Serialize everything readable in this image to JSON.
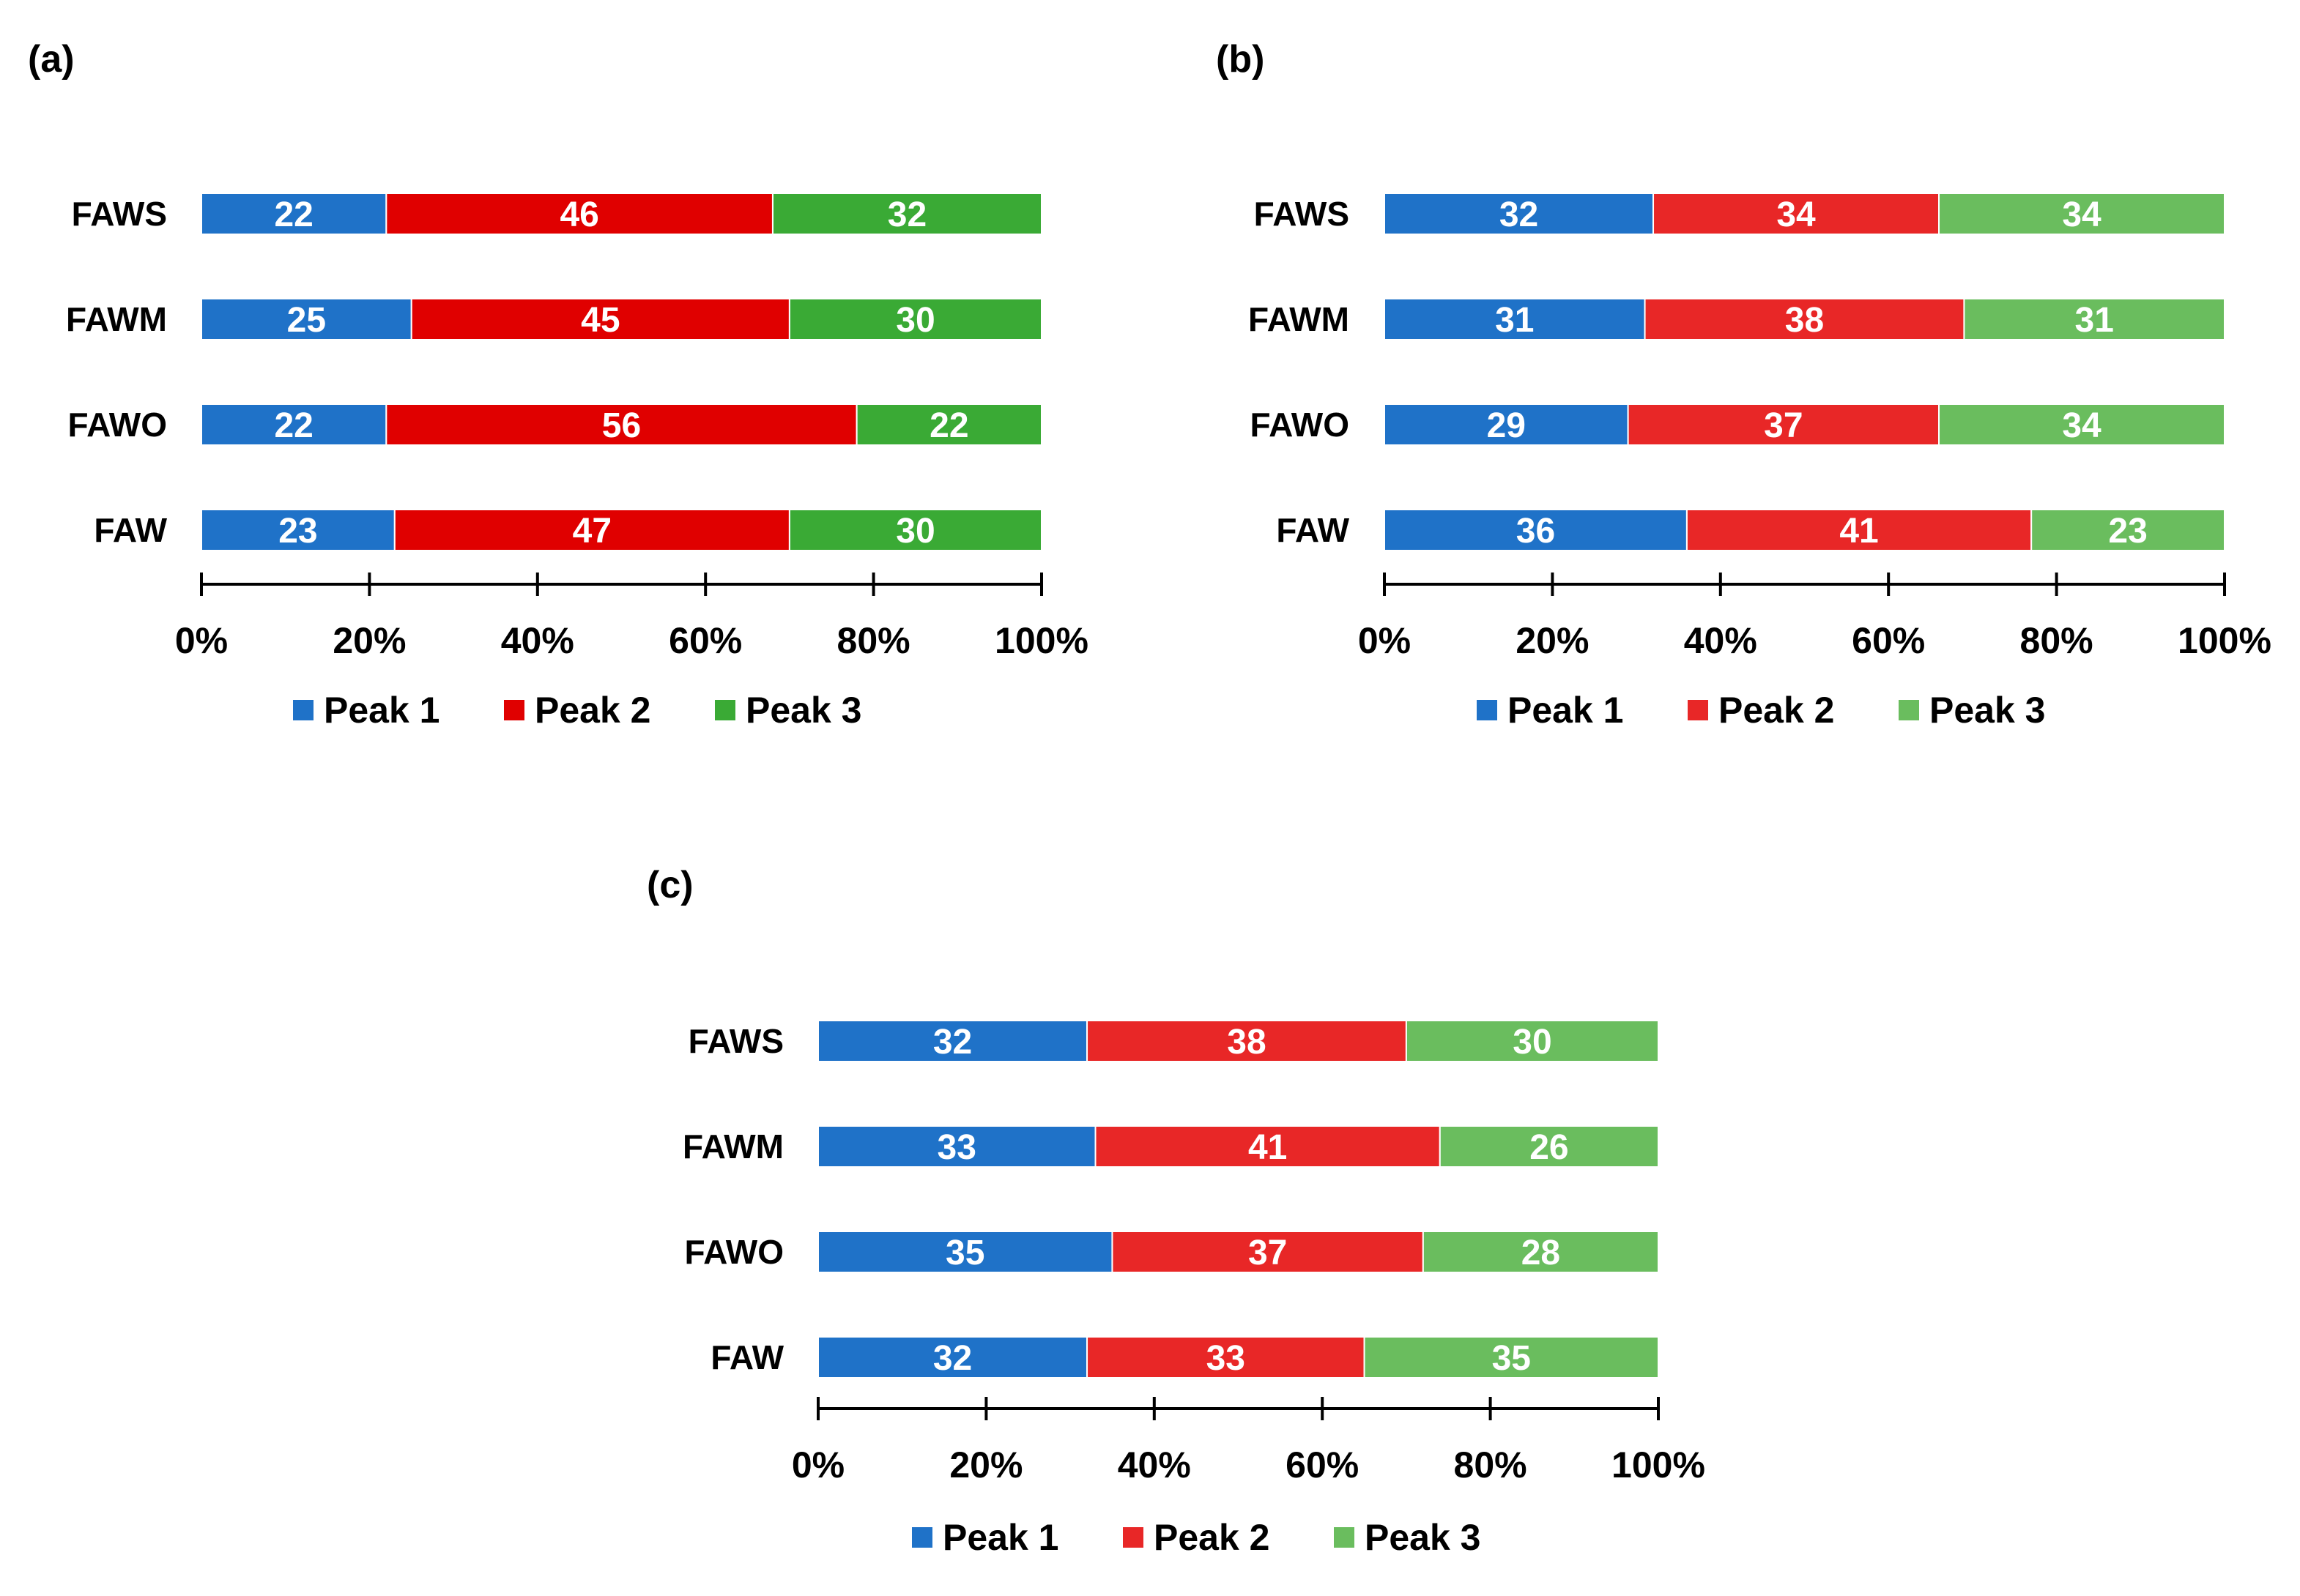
{
  "colors": {
    "text": "#000000",
    "bar_label": "#ffffff",
    "axis": "#000000"
  },
  "chart_data": [
    {
      "panel": "(a)",
      "type": "bar",
      "orientation": "horizontal",
      "stacked": true,
      "categories": [
        "FAWS",
        "FAWM",
        "FAWO",
        "FAW"
      ],
      "series": [
        {
          "name": "Peak 1",
          "color": "#1f72c8",
          "values": [
            22,
            25,
            22,
            23
          ]
        },
        {
          "name": "Peak 2",
          "color": "#e00000",
          "values": [
            46,
            45,
            56,
            47
          ]
        },
        {
          "name": "Peak 3",
          "color": "#3aaa35",
          "values": [
            32,
            30,
            22,
            30
          ]
        }
      ],
      "xlim": [
        0,
        100
      ],
      "xticks": [
        "0%",
        "20%",
        "40%",
        "60%",
        "80%",
        "100%"
      ],
      "legend": "bottom"
    },
    {
      "panel": "(b)",
      "type": "bar",
      "orientation": "horizontal",
      "stacked": true,
      "categories": [
        "FAWS",
        "FAWM",
        "FAWO",
        "FAW"
      ],
      "series": [
        {
          "name": "Peak 1",
          "color": "#1f72c8",
          "values": [
            32,
            31,
            29,
            36
          ]
        },
        {
          "name": "Peak 2",
          "color": "#e82727",
          "values": [
            34,
            38,
            37,
            41
          ]
        },
        {
          "name": "Peak 3",
          "color": "#6abd5e",
          "values": [
            34,
            31,
            34,
            23
          ]
        }
      ],
      "xlim": [
        0,
        100
      ],
      "xticks": [
        "0%",
        "20%",
        "40%",
        "60%",
        "80%",
        "100%"
      ],
      "legend": "bottom"
    },
    {
      "panel": "(c)",
      "type": "bar",
      "orientation": "horizontal",
      "stacked": true,
      "categories": [
        "FAWS",
        "FAWM",
        "FAWO",
        "FAW"
      ],
      "series": [
        {
          "name": "Peak 1",
          "color": "#1f72c8",
          "values": [
            32,
            33,
            35,
            32
          ]
        },
        {
          "name": "Peak 2",
          "color": "#e82727",
          "values": [
            38,
            41,
            37,
            33
          ]
        },
        {
          "name": "Peak 3",
          "color": "#6abd5e",
          "values": [
            30,
            26,
            28,
            35
          ]
        }
      ],
      "xlim": [
        0,
        100
      ],
      "xticks": [
        "0%",
        "20%",
        "40%",
        "60%",
        "80%",
        "100%"
      ],
      "legend": "bottom"
    }
  ]
}
